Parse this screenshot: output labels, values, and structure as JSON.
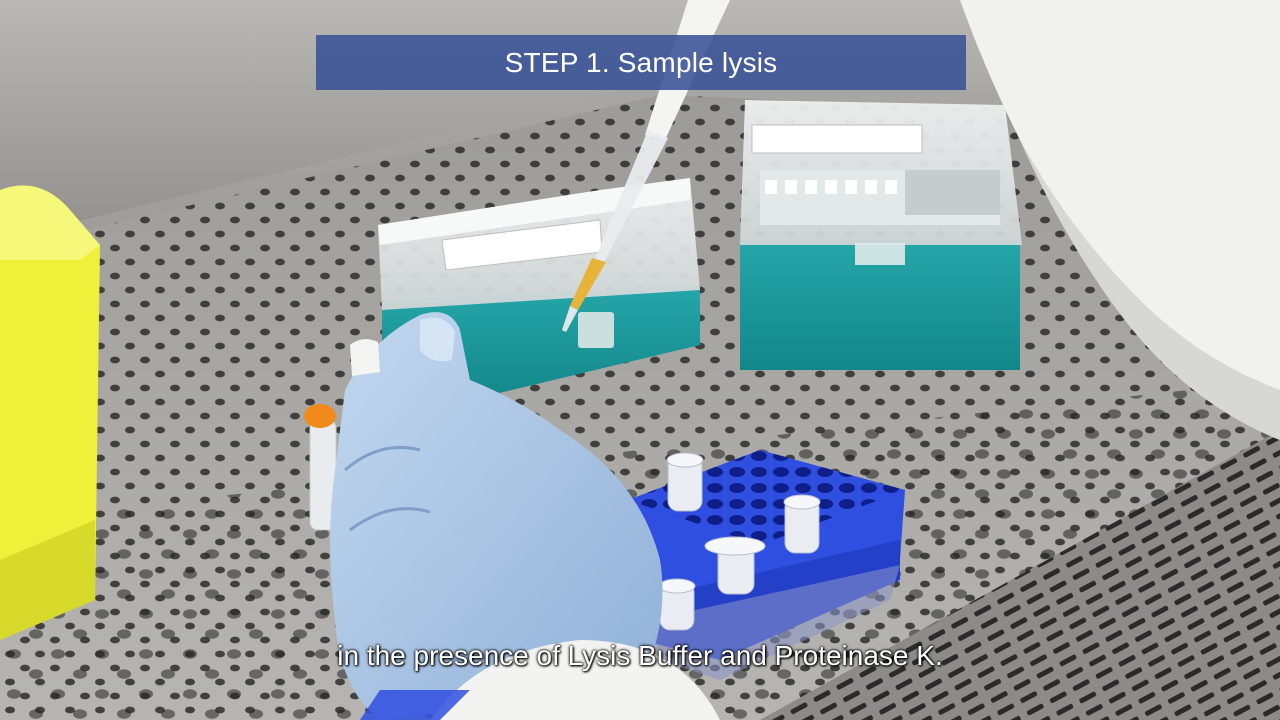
{
  "video": {
    "step_title": "STEP 1. Sample lysis",
    "subtitle": "in the presence of Lysis Buffer and Proteinase K."
  },
  "colors": {
    "banner": "#385296",
    "rack": "#2f4fe0",
    "tip_box_base": "#1f9a9c",
    "glove": "#a9c6e6",
    "waste_bin": "#f0f03a"
  }
}
